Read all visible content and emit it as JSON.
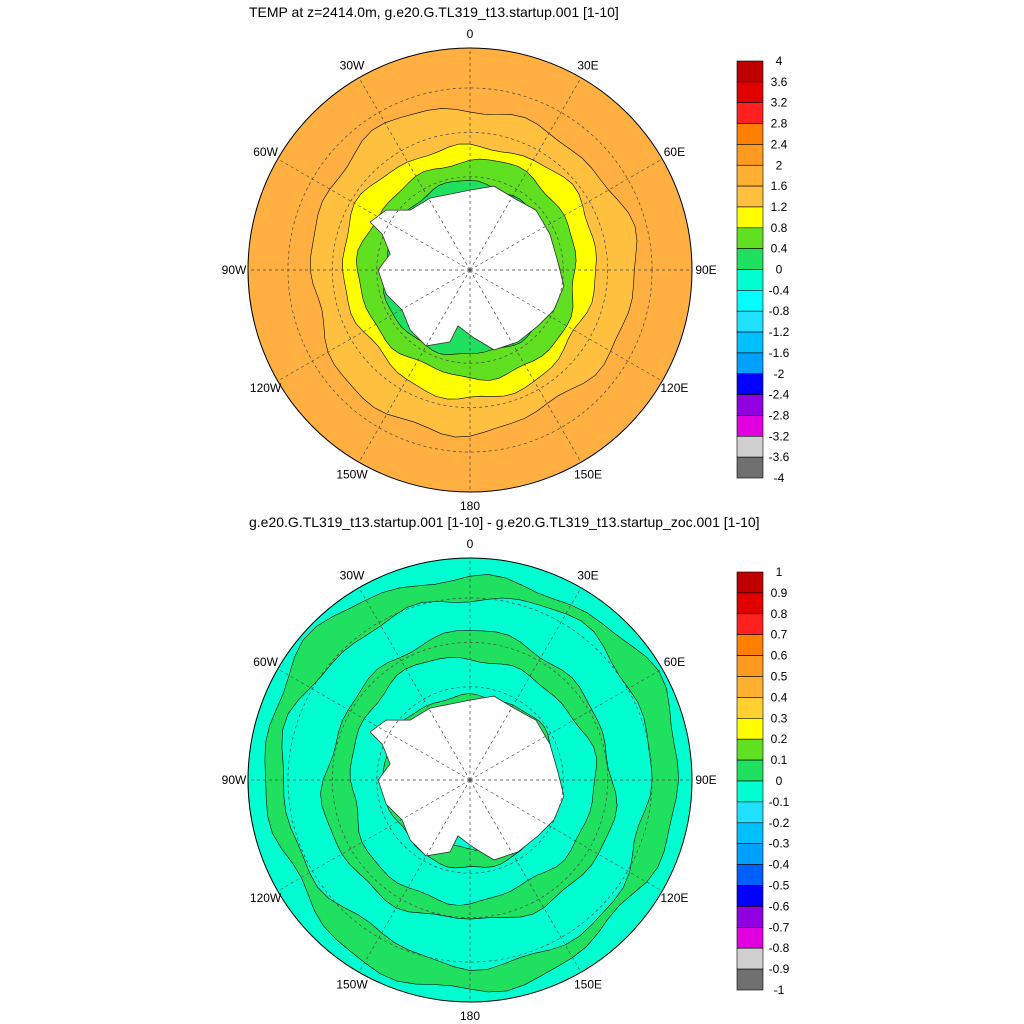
{
  "panels": [
    {
      "title": "TEMP at z=2414.0m, g.e20.G.TL319_t13.startup.001 [1-10]",
      "lon_labels": [
        "0",
        "30E",
        "60E",
        "90E",
        "120E",
        "150E",
        "180",
        "150W",
        "120W",
        "90W",
        "60W",
        "30W"
      ],
      "colorbar": {
        "labels": [
          "4",
          "3.6",
          "3.2",
          "2.8",
          "2.4",
          "2",
          "1.6",
          "1.2",
          "0.8",
          "0.4",
          "0",
          "-0.4",
          "-0.8",
          "-1.2",
          "-1.6",
          "-2",
          "-2.4",
          "-2.8",
          "-3.2",
          "-3.6",
          "-4"
        ],
        "colors": [
          "#c00000",
          "#e00000",
          "#ff2020",
          "#ff8000",
          "#ff9a20",
          "#ffb030",
          "#ffc040",
          "#ffff00",
          "#60e020",
          "#20e060",
          "#00ffd0",
          "#00ffff",
          "#20e0ff",
          "#00c0ff",
          "#00a0ff",
          "#0000ff",
          "#9000e0",
          "#e000e0",
          "#d0d0d0",
          "#707070"
        ]
      },
      "rings": [
        {
          "r": 0.0,
          "c": "#ffb040"
        },
        {
          "r": 0.32,
          "c": "#ffc040"
        },
        {
          "r": 0.48,
          "c": "#ffff00"
        },
        {
          "r": 0.56,
          "c": "#60e020"
        },
        {
          "r": 0.66,
          "c": "#20e060"
        },
        {
          "r": 0.8,
          "c": "#00ffd0"
        }
      ]
    },
    {
      "title": "g.e20.G.TL319_t13.startup.001 [1-10] - g.e20.G.TL319_t13.startup_zoc.001 [1-10]",
      "lon_labels": [
        "0",
        "30E",
        "60E",
        "90E",
        "120E",
        "150E",
        "180",
        "150W",
        "120W",
        "90W",
        "60W",
        "30W"
      ],
      "colorbar": {
        "labels": [
          "1",
          "0.9",
          "0.8",
          "0.7",
          "0.6",
          "0.5",
          "0.4",
          "0.3",
          "0.2",
          "0.1",
          "0",
          "-0.1",
          "-0.2",
          "-0.3",
          "-0.4",
          "-0.5",
          "-0.6",
          "-0.7",
          "-0.8",
          "-0.9",
          "-1"
        ],
        "colors": [
          "#c00000",
          "#e00000",
          "#ff2020",
          "#ff8000",
          "#ff9a20",
          "#ffb030",
          "#ffd030",
          "#ffff00",
          "#60e020",
          "#20e060",
          "#00ffd0",
          "#20e0ff",
          "#00c0ff",
          "#00a0ff",
          "#0060ff",
          "#0000ff",
          "#9000e0",
          "#e000e0",
          "#d0d0d0",
          "#707070"
        ]
      },
      "rings": [
        {
          "r": 0.0,
          "c": "#00ffd0"
        },
        {
          "r": 0.12,
          "c": "#20e060"
        },
        {
          "r": 0.22,
          "c": "#00ffd0"
        },
        {
          "r": 0.4,
          "c": "#20e060"
        },
        {
          "r": 0.5,
          "c": "#00ffd0"
        },
        {
          "r": 0.66,
          "c": "#20e060"
        },
        {
          "r": 0.74,
          "c": "#00ffd0"
        }
      ]
    }
  ]
}
